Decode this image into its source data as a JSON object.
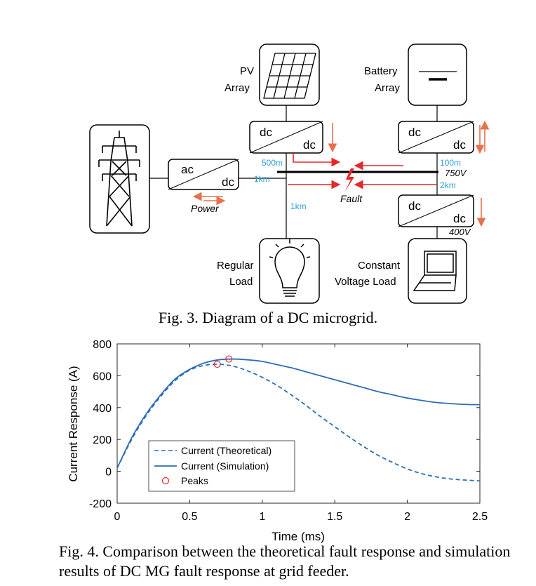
{
  "diagram": {
    "pv_label_1": "PV",
    "pv_label_2": "Array",
    "battery_label_1": "Battery",
    "battery_label_2": "Array",
    "converter_dc": "dc",
    "converter_ac": "ac",
    "power_label": "Power",
    "fault_label": "Fault",
    "len_500m": "500m",
    "len_1km_a": "1km",
    "len_1km_b": "1km",
    "len_100m": "100m",
    "len_2km": "2km",
    "v_750": "750V",
    "v_400": "400V",
    "regular_load_1": "Regular",
    "regular_load_2": "Load",
    "cv_load_1": "Constant",
    "cv_load_2": "Voltage Load",
    "colors": {
      "line": "#000000",
      "arrow": "#e8704a",
      "red": "#e8262a",
      "blue_text": "#2e9fd8"
    }
  },
  "fig3_caption": "Fig. 3. Diagram of a DC microgrid.",
  "fig4_caption": "Fig. 4. Comparison between the theoretical fault response and simulation results of DC MG fault response at grid feeder.",
  "chart_data": {
    "type": "line",
    "xlabel": "Time (ms)",
    "ylabel": "Current Response (A)",
    "xlim": [
      0,
      2.5
    ],
    "ylim": [
      -200,
      800
    ],
    "xticks": [
      "0",
      "0.5",
      "1",
      "1.5",
      "2",
      "2.5"
    ],
    "yticks": [
      "-200",
      "0",
      "200",
      "400",
      "600",
      "800"
    ],
    "legend_position": "lower-left",
    "series": [
      {
        "name": "Current (Theoretical)",
        "style": "dashed",
        "color": "#2e6db5",
        "x": [
          0,
          0.1,
          0.2,
          0.3,
          0.4,
          0.5,
          0.6,
          0.7,
          0.8,
          0.9,
          1.0,
          1.1,
          1.2,
          1.3,
          1.4,
          1.5,
          1.6,
          1.7,
          1.8,
          1.9,
          2.0,
          2.1,
          2.2,
          2.3,
          2.4,
          2.5
        ],
        "values": [
          20,
          200,
          350,
          470,
          570,
          635,
          665,
          672,
          660,
          630,
          590,
          540,
          480,
          415,
          345,
          280,
          215,
          155,
          100,
          55,
          15,
          -15,
          -35,
          -48,
          -55,
          -60
        ]
      },
      {
        "name": "Current (Simulation)",
        "style": "solid",
        "color": "#2e6db5",
        "x": [
          0,
          0.1,
          0.2,
          0.3,
          0.4,
          0.5,
          0.6,
          0.7,
          0.8,
          0.9,
          1.0,
          1.1,
          1.2,
          1.3,
          1.4,
          1.5,
          1.6,
          1.7,
          1.8,
          1.9,
          2.0,
          2.1,
          2.2,
          2.3,
          2.4,
          2.5
        ],
        "values": [
          20,
          210,
          360,
          480,
          580,
          640,
          680,
          700,
          705,
          700,
          690,
          670,
          650,
          625,
          600,
          575,
          550,
          525,
          500,
          480,
          460,
          445,
          432,
          425,
          420,
          418
        ]
      },
      {
        "name": "Peaks",
        "style": "marker",
        "color": "#e8262a",
        "x": [
          0.69,
          0.77
        ],
        "values": [
          672,
          705
        ]
      }
    ]
  }
}
